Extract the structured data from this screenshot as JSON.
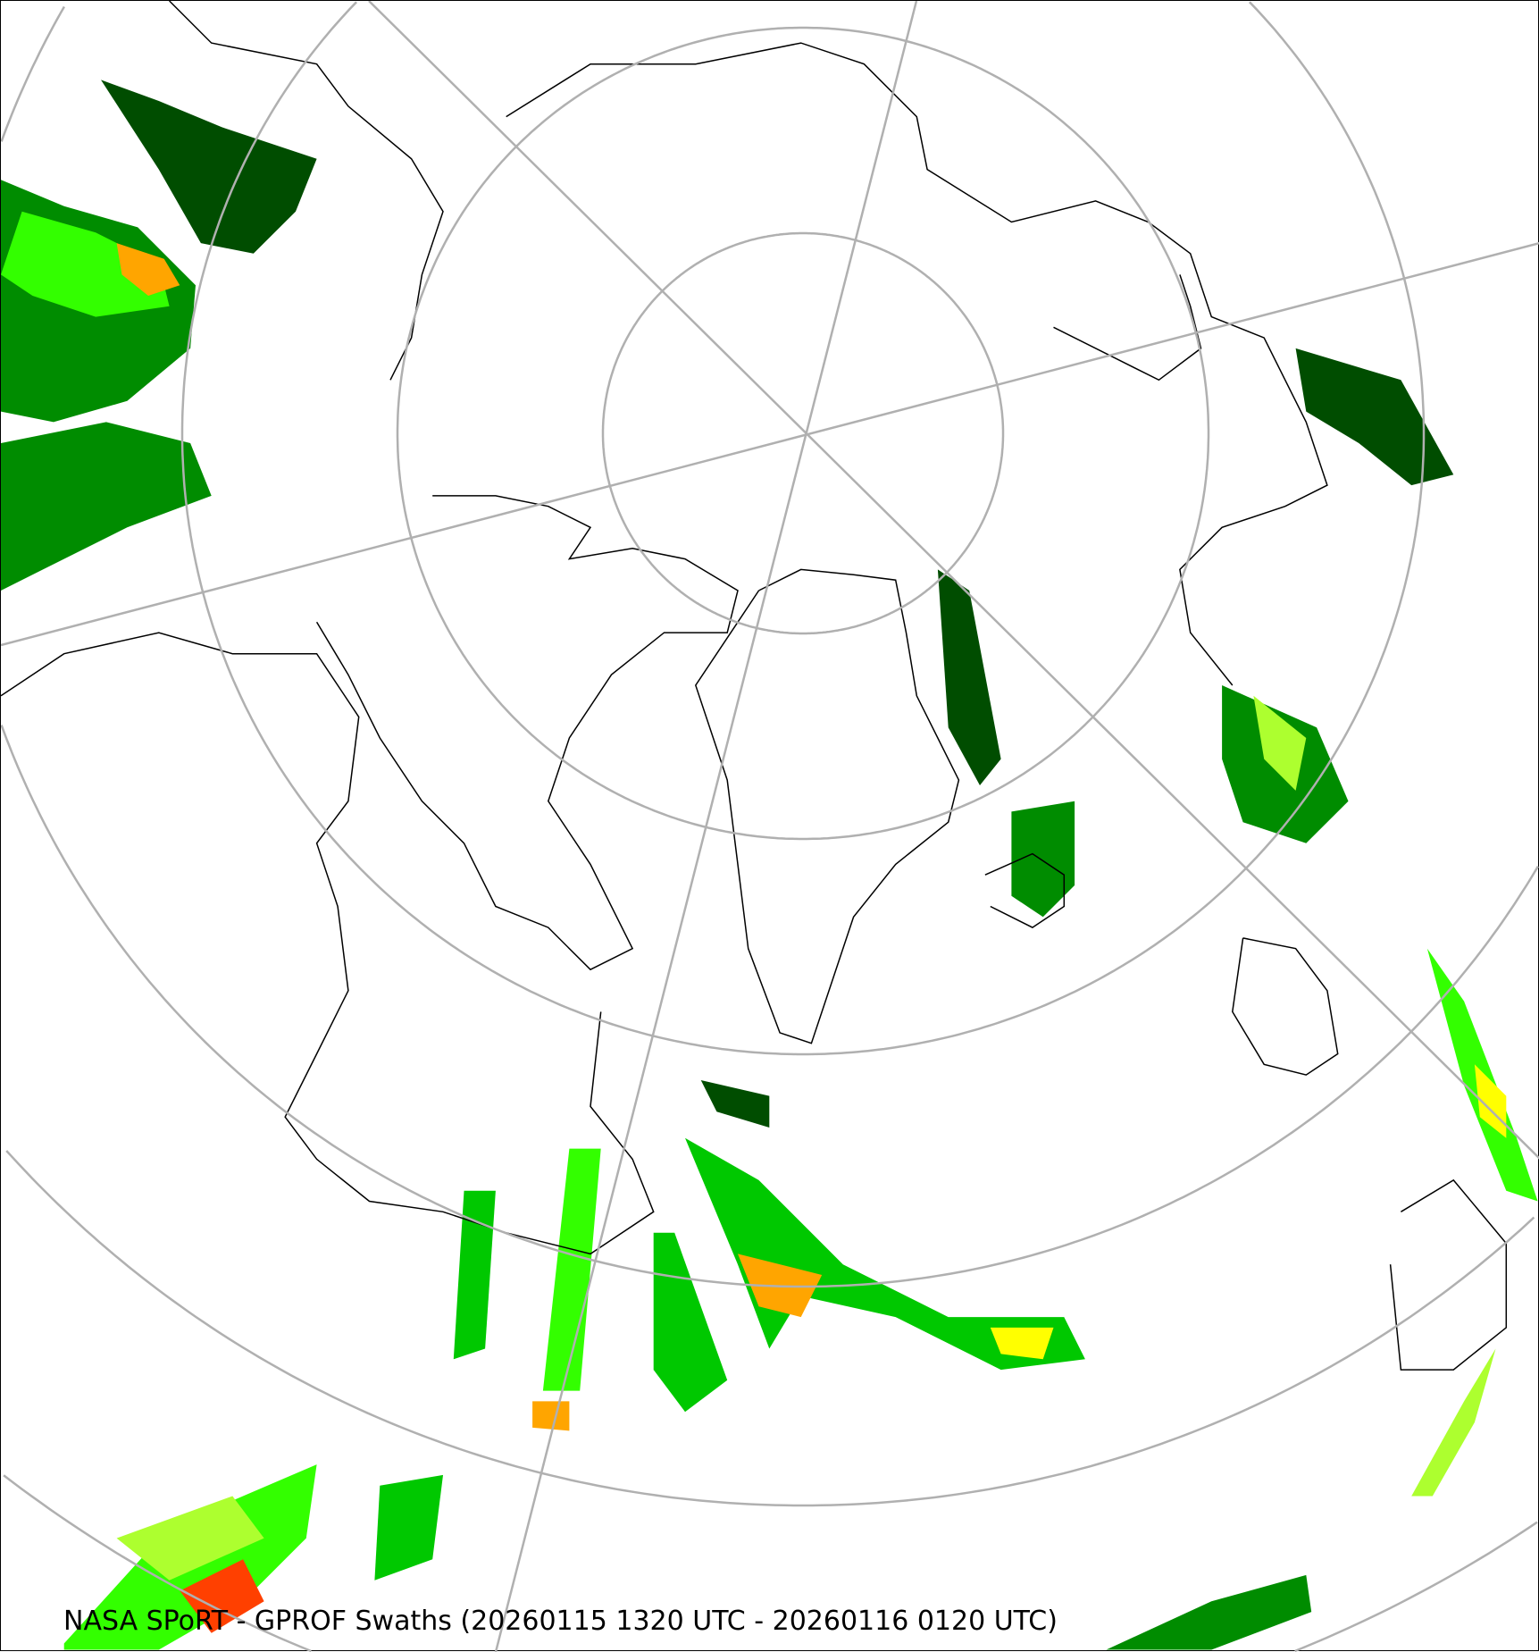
{
  "title": "NASA SPoRT - GPROF Swaths (20260115 1320 UTC - 20260116 0120 UTC)",
  "projection": "north-polar-stereographic",
  "colors": {
    "graticule": "#b0b0b0",
    "coastline": "#000000",
    "precip_scale": [
      "#004d00",
      "#008c00",
      "#00c800",
      "#33ff00",
      "#adff2f",
      "#ffff00",
      "#ffa500",
      "#ff4000"
    ]
  }
}
